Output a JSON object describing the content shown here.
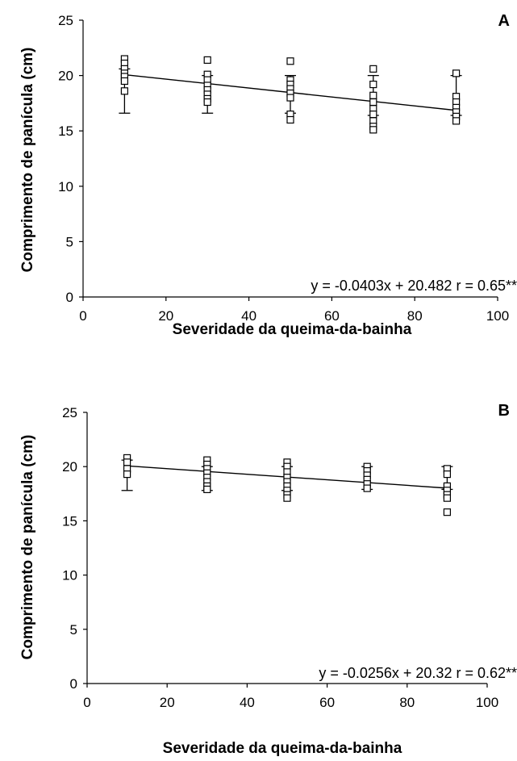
{
  "chart_data": [
    {
      "type": "scatter",
      "panel_label": "A",
      "xlabel": "Severidade da queima-da-bainha",
      "ylabel": "Comprimento de panícula (cm)",
      "xlim": [
        0,
        100
      ],
      "ylim": [
        0,
        25
      ],
      "xticks": [
        0,
        20,
        40,
        60,
        80,
        100
      ],
      "yticks": [
        0,
        5,
        10,
        15,
        20,
        25
      ],
      "grid": false,
      "equation": "y = -0.0403x + 20.482 r = 0.65**",
      "trendline": {
        "slope": -0.0403,
        "intercept": 20.482,
        "x_range": [
          10,
          90
        ]
      },
      "error_bars": [
        {
          "x": 10,
          "low": 16.6,
          "high": 20.6
        },
        {
          "x": 30,
          "low": 16.6,
          "high": 20.0
        },
        {
          "x": 50,
          "low": 16.6,
          "high": 20.0
        },
        {
          "x": 70,
          "low": 16.4,
          "high": 20.0
        },
        {
          "x": 90,
          "low": 16.4,
          "high": 20.0
        }
      ],
      "points": [
        {
          "x": 10,
          "y": 21.5
        },
        {
          "x": 10,
          "y": 21.1
        },
        {
          "x": 10,
          "y": 20.6
        },
        {
          "x": 10,
          "y": 20.2
        },
        {
          "x": 10,
          "y": 19.9
        },
        {
          "x": 10,
          "y": 19.5
        },
        {
          "x": 10,
          "y": 18.6
        },
        {
          "x": 30,
          "y": 21.4
        },
        {
          "x": 30,
          "y": 20.1
        },
        {
          "x": 30,
          "y": 19.6
        },
        {
          "x": 30,
          "y": 19.1
        },
        {
          "x": 30,
          "y": 18.7
        },
        {
          "x": 30,
          "y": 18.3
        },
        {
          "x": 30,
          "y": 17.9
        },
        {
          "x": 30,
          "y": 17.6
        },
        {
          "x": 50,
          "y": 21.3
        },
        {
          "x": 50,
          "y": 19.6
        },
        {
          "x": 50,
          "y": 19.2
        },
        {
          "x": 50,
          "y": 18.8
        },
        {
          "x": 50,
          "y": 18.4
        },
        {
          "x": 50,
          "y": 18.0
        },
        {
          "x": 50,
          "y": 16.5
        },
        {
          "x": 50,
          "y": 16.0
        },
        {
          "x": 70,
          "y": 20.6
        },
        {
          "x": 70,
          "y": 19.2
        },
        {
          "x": 70,
          "y": 18.2
        },
        {
          "x": 70,
          "y": 17.6
        },
        {
          "x": 70,
          "y": 17.0
        },
        {
          "x": 70,
          "y": 16.5
        },
        {
          "x": 70,
          "y": 15.9
        },
        {
          "x": 70,
          "y": 15.4
        },
        {
          "x": 70,
          "y": 15.1
        },
        {
          "x": 90,
          "y": 20.2
        },
        {
          "x": 90,
          "y": 18.1
        },
        {
          "x": 90,
          "y": 17.6
        },
        {
          "x": 90,
          "y": 17.1
        },
        {
          "x": 90,
          "y": 16.7
        },
        {
          "x": 90,
          "y": 16.3
        },
        {
          "x": 90,
          "y": 15.9
        }
      ]
    },
    {
      "type": "scatter",
      "panel_label": "B",
      "xlabel": "Severidade da queima-da-bainha",
      "ylabel": "Comprimento de panícula (cm)",
      "xlim": [
        0,
        100
      ],
      "ylim": [
        0,
        25
      ],
      "xticks": [
        0,
        20,
        40,
        60,
        80,
        100
      ],
      "yticks": [
        0,
        5,
        10,
        15,
        20,
        25
      ],
      "grid": false,
      "equation": "y = -0.0256x + 20.32  r = 0.62**",
      "trendline": {
        "slope": -0.0256,
        "intercept": 20.32,
        "x_range": [
          10,
          90
        ]
      },
      "error_bars": [
        {
          "x": 10,
          "low": 17.8,
          "high": 20.6
        },
        {
          "x": 30,
          "low": 17.8,
          "high": 20.0
        },
        {
          "x": 50,
          "low": 17.8,
          "high": 20.0
        },
        {
          "x": 70,
          "low": 17.9,
          "high": 20.0
        },
        {
          "x": 90,
          "low": 17.9,
          "high": 20.0
        }
      ],
      "points": [
        {
          "x": 10,
          "y": 20.8
        },
        {
          "x": 10,
          "y": 20.4
        },
        {
          "x": 10,
          "y": 19.8
        },
        {
          "x": 10,
          "y": 19.3
        },
        {
          "x": 30,
          "y": 20.6
        },
        {
          "x": 30,
          "y": 20.2
        },
        {
          "x": 30,
          "y": 19.8
        },
        {
          "x": 30,
          "y": 19.4
        },
        {
          "x": 30,
          "y": 19.0
        },
        {
          "x": 30,
          "y": 18.6
        },
        {
          "x": 30,
          "y": 18.2
        },
        {
          "x": 30,
          "y": 17.9
        },
        {
          "x": 50,
          "y": 20.4
        },
        {
          "x": 50,
          "y": 20.0
        },
        {
          "x": 50,
          "y": 19.5
        },
        {
          "x": 50,
          "y": 19.0
        },
        {
          "x": 50,
          "y": 18.6
        },
        {
          "x": 50,
          "y": 18.2
        },
        {
          "x": 50,
          "y": 17.8
        },
        {
          "x": 50,
          "y": 17.4
        },
        {
          "x": 50,
          "y": 17.1
        },
        {
          "x": 70,
          "y": 20.0
        },
        {
          "x": 70,
          "y": 19.6
        },
        {
          "x": 70,
          "y": 19.2
        },
        {
          "x": 70,
          "y": 18.8
        },
        {
          "x": 70,
          "y": 18.4
        },
        {
          "x": 70,
          "y": 18.0
        },
        {
          "x": 90,
          "y": 19.8
        },
        {
          "x": 90,
          "y": 19.3
        },
        {
          "x": 90,
          "y": 18.2
        },
        {
          "x": 90,
          "y": 17.8
        },
        {
          "x": 90,
          "y": 17.4
        },
        {
          "x": 90,
          "y": 17.1
        },
        {
          "x": 90,
          "y": 15.8
        }
      ]
    }
  ]
}
